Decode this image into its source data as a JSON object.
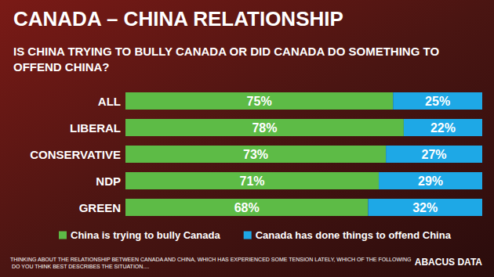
{
  "chart_data": {
    "type": "bar",
    "title": "CANADA – CHINA RELATIONSHIP",
    "subtitle": "IS CHINA TRYING TO BULLY CANADA OR DID CANADA DO SOMETHING TO OFFEND CHINA?",
    "note": "THINKING ABOUT THE RELATIONSHIP BETWEEN CANADA AND CHINA, WHICH HAS EXPERIENCED SOME TENSION LATELY, WHICH OF THE FOLLOWING DO YOU THINK BEST DESCRIBES THE SITUATION....",
    "source": "ABACUS DATA",
    "categories": [
      "ALL",
      "LIBERAL",
      "CONSERVATIVE",
      "NDP",
      "GREEN"
    ],
    "series": [
      {
        "name": "China is trying to bully Canada",
        "color": "#5dbb46",
        "values": [
          75,
          78,
          73,
          71,
          68
        ],
        "value_labels": [
          "75%",
          "78%",
          "73%",
          "71%",
          "68%"
        ]
      },
      {
        "name": "Canada has done things to offend China",
        "color": "#1ea8e6",
        "values": [
          25,
          22,
          27,
          29,
          32
        ],
        "value_labels": [
          "25%",
          "22%",
          "27%",
          "29%",
          "32%"
        ]
      }
    ],
    "xlim": [
      0,
      100
    ],
    "orientation": "horizontal",
    "stacked": true,
    "data_labels": true,
    "tick_labels": false,
    "grid": false,
    "legend": "bottom"
  }
}
